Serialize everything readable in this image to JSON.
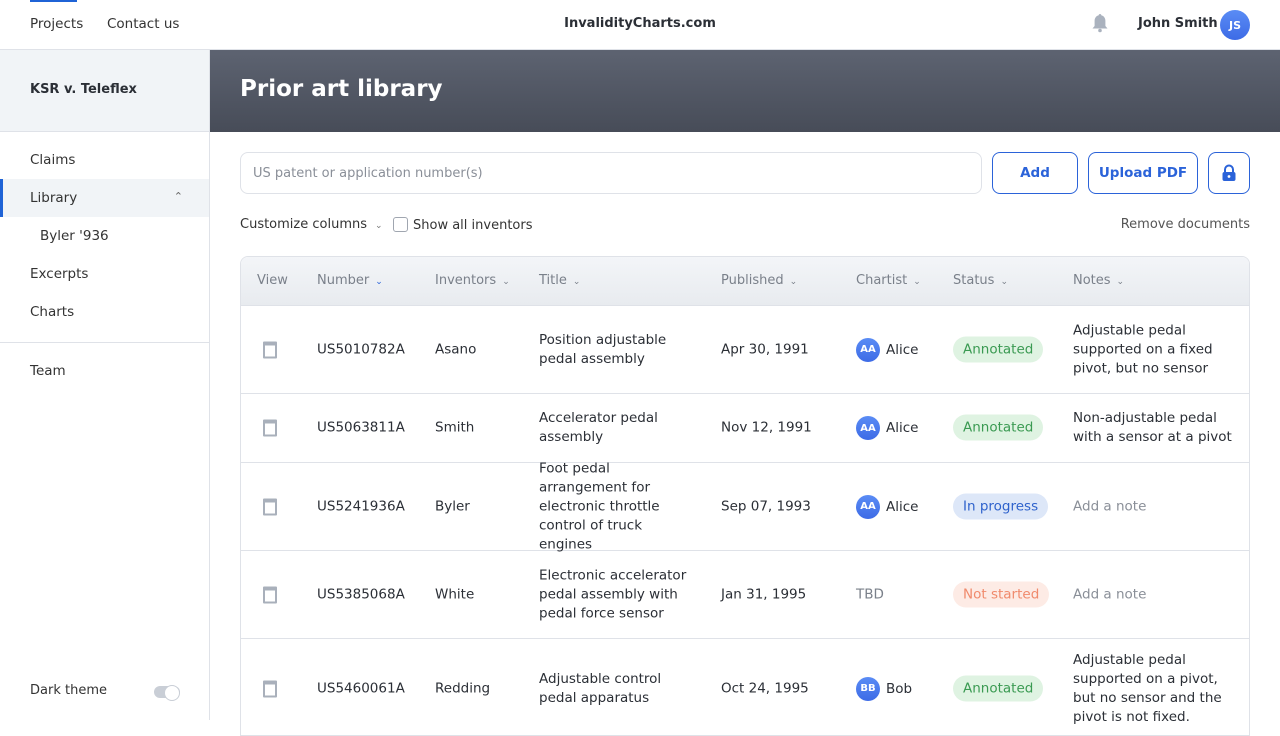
{
  "topnav": {
    "items": [
      "Projects",
      "Contact us"
    ],
    "brand": "InvalidityCharts.com",
    "user_name": "John Smith",
    "user_initials": "JS"
  },
  "sidebar": {
    "project": "KSR v. Teleflex",
    "items": [
      {
        "label": "Claims"
      },
      {
        "label": "Library"
      },
      {
        "label": "Byler '936"
      },
      {
        "label": "Excerpts"
      },
      {
        "label": "Charts"
      },
      {
        "label": "Team"
      }
    ],
    "dark_theme": "Dark theme",
    "dark_theme_on": false
  },
  "page": {
    "title": "Prior art library"
  },
  "search": {
    "placeholder": "US patent or application number(s)"
  },
  "toolbar": {
    "add": "Add",
    "upload": "Upload PDF",
    "customize": "Customize columns",
    "show_inventors": "Show all inventors",
    "remove": "Remove documents"
  },
  "colors": {
    "accent": "#1f63d6",
    "annotated_bg": "#dff3e2",
    "annotated_fg": "#3a9a52",
    "progress_bg": "#dde7f8",
    "progress_fg": "#2e62cc",
    "notstarted_bg": "#fdebe5",
    "notstarted_fg": "#f08a6c"
  },
  "table": {
    "headers": [
      "View",
      "Number",
      "Inventors",
      "Title",
      "Published",
      "Chartist",
      "Status",
      "Notes"
    ],
    "rows": [
      {
        "number": "US5010782A",
        "inventors": "Asano",
        "title": "Position adjustable pedal assembly",
        "published": "Apr 30, 1991",
        "chartist": "Alice",
        "chartist_initials": "AA",
        "status": "Annotated",
        "notes": "Adjustable pedal supported on a fixed pivot, but no sensor"
      },
      {
        "number": "US5063811A",
        "inventors": "Smith",
        "title": "Accelerator pedal assembly",
        "published": "Nov 12, 1991",
        "chartist": "Alice",
        "chartist_initials": "AA",
        "status": "Annotated",
        "notes": "Non-adjustable pedal with a sensor at a pivot"
      },
      {
        "number": "US5241936A",
        "inventors": "Byler",
        "title": "Foot pedal arrangement for electronic throttle control of truck engines",
        "published": "Sep 07, 1993",
        "chartist": "Alice",
        "chartist_initials": "AA",
        "status": "In progress",
        "notes": "Add a note"
      },
      {
        "number": "US5385068A",
        "inventors": "White",
        "title": "Electronic accelerator pedal assembly with pedal force sensor",
        "published": "Jan 31, 1995",
        "chartist": "TBD",
        "chartist_initials": "",
        "status": "Not started",
        "notes": "Add a note"
      },
      {
        "number": "US5460061A",
        "inventors": "Redding",
        "title": "Adjustable control pedal apparatus",
        "published": "Oct 24, 1995",
        "chartist": "Bob",
        "chartist_initials": "BB",
        "status": "Annotated",
        "notes": "Adjustable pedal supported on a pivot, but no sensor and the pivot is not fixed."
      }
    ]
  }
}
